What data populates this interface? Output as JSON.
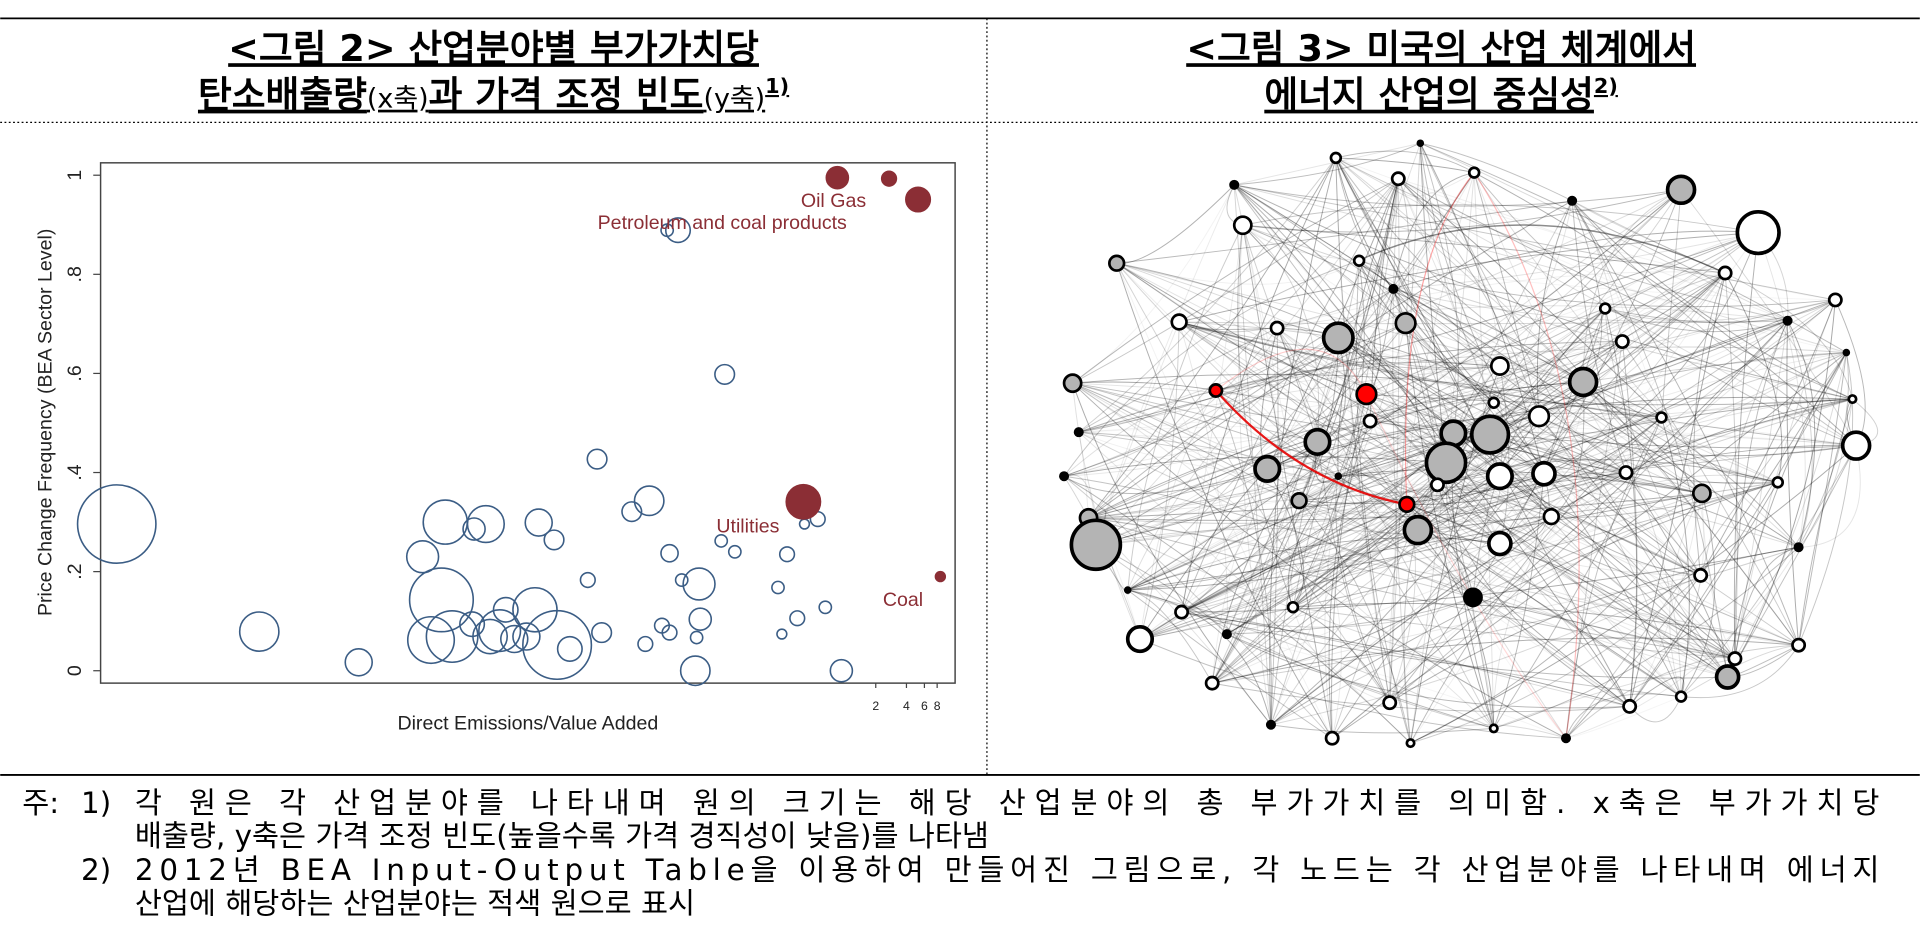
{
  "figure_2": {
    "title_lines": [
      [
        "<그림 2> 산업분야별 부가가치당"
      ],
      [
        "탄소배출량",
        "(x축)",
        "과 가격 조정 빈도",
        "(y축)",
        "1)"
      ]
    ]
  },
  "figure_3": {
    "title_lines": [
      [
        "<그림 3> 미국의 산업 체계에서"
      ],
      [
        "에너지 산업의 중심성",
        "2)"
      ]
    ]
  },
  "chart_data": {
    "type": "scatter",
    "xlabel": "Direct Emissions/Value Added",
    "ylabel": "Price Change Frequency (BEA Sector Level)",
    "xscale": "log",
    "xlim": [
      5e-08,
      12
    ],
    "xticks": [
      2,
      4,
      6,
      8
    ],
    "ylim": [
      -0.025,
      1.025
    ],
    "yticks": [
      0,
      {
        "value": 0.2,
        "label": ".2"
      },
      {
        "value": 0.4,
        "label": ".4"
      },
      {
        "value": 0.6,
        "label": ".6"
      },
      {
        "value": 0.8,
        "label": ".8"
      },
      1
    ],
    "series": [
      {
        "color": "#3b5d85",
        "filled": false,
        "x": [
          7.2e-08,
          1.8e-06,
          1.7e-05,
          7.2e-05,
          0.00012,
          0.0003,
          0.00023,
          0.00011,
          8.7e-05,
          0.00014,
          0.00041,
          0.00022,
          0.00099,
          0.0014,
          0.00091,
          0.0015,
          0.00075,
          0.002,
          0.0041,
          0.003,
          0.0037,
          0.012,
          0.0081,
          0.066,
          0.023,
          0.018,
          0.019,
          0.037,
          0.025,
          0.038,
          0.016,
          0.019,
          0.011,
          0.034,
          0.035,
          0.061,
          0.083,
          0.27,
          0.22,
          0.34,
          0.24,
          0.64,
          0.92,
          0.54,
          0.4,
          0.00047,
          0.00033,
          0.00057
        ],
        "values": [
          0.296,
          0.079,
          0.017,
          0.23,
          0.3,
          0.296,
          0.286,
          0.143,
          0.062,
          0.069,
          0.081,
          0.094,
          0.299,
          0.264,
          0.123,
          0.052,
          0.069,
          0.044,
          0.077,
          0.183,
          0.427,
          0.343,
          0.321,
          0.598,
          0.889,
          0.889,
          0.237,
          0.175,
          0.183,
          0.104,
          0.091,
          0.077,
          0.054,
          0,
          0.067,
          0.262,
          0.24,
          0.235,
          0.168,
          0.106,
          0.074,
          0.128,
          0,
          0.306,
          0.296,
          0.123,
          0.069,
          0.064
        ],
        "sizes": [
          1024,
          256,
          121,
          169,
          324,
          225,
          81,
          676,
          361,
          441,
          289,
          100,
          121,
          64,
          324,
          784,
          121,
          100,
          64,
          36,
          64,
          144,
          64,
          64,
          100,
          25,
          49,
          169,
          25,
          81,
          36,
          36,
          36,
          144,
          25,
          25,
          25,
          36,
          25,
          36,
          16,
          25,
          81,
          36,
          16,
          100,
          196,
          121
        ]
      },
      {
        "color": "#8b2e35",
        "filled": true,
        "x": [
          0.84,
          2.7,
          5.2,
          0.39,
          8.6
        ],
        "values": [
          0.995,
          0.993,
          0.951,
          0.341,
          0.19
        ],
        "sizes": [
          81,
          36,
          100,
          196,
          16
        ]
      }
    ],
    "annotations": [
      "Oil Gas",
      "Petroleum and coal products",
      "Utilities",
      "Coal"
    ]
  },
  "notes": {
    "label": "주:",
    "items": [
      {
        "marker": "1)",
        "lines": [
          "각 원은 각 산업분야를 나타내며 원의 크기는 해당 산업분야의 총 부가가치를 의미함. x축은 부가가치당",
          "배출량, y축은 가격 조정 빈도(높을수록 가격 경직성이 낮음)를 나타냄"
        ]
      },
      {
        "marker": "2)",
        "lines": [
          "2012년 BEA Input-Output Table을 이용하여 만들어진 그림으로, 각 노드는 각 산업분야를 나타내며 에너지",
          "산업에 해당하는 산업분야는 적색 원으로 표시"
        ]
      }
    ]
  }
}
